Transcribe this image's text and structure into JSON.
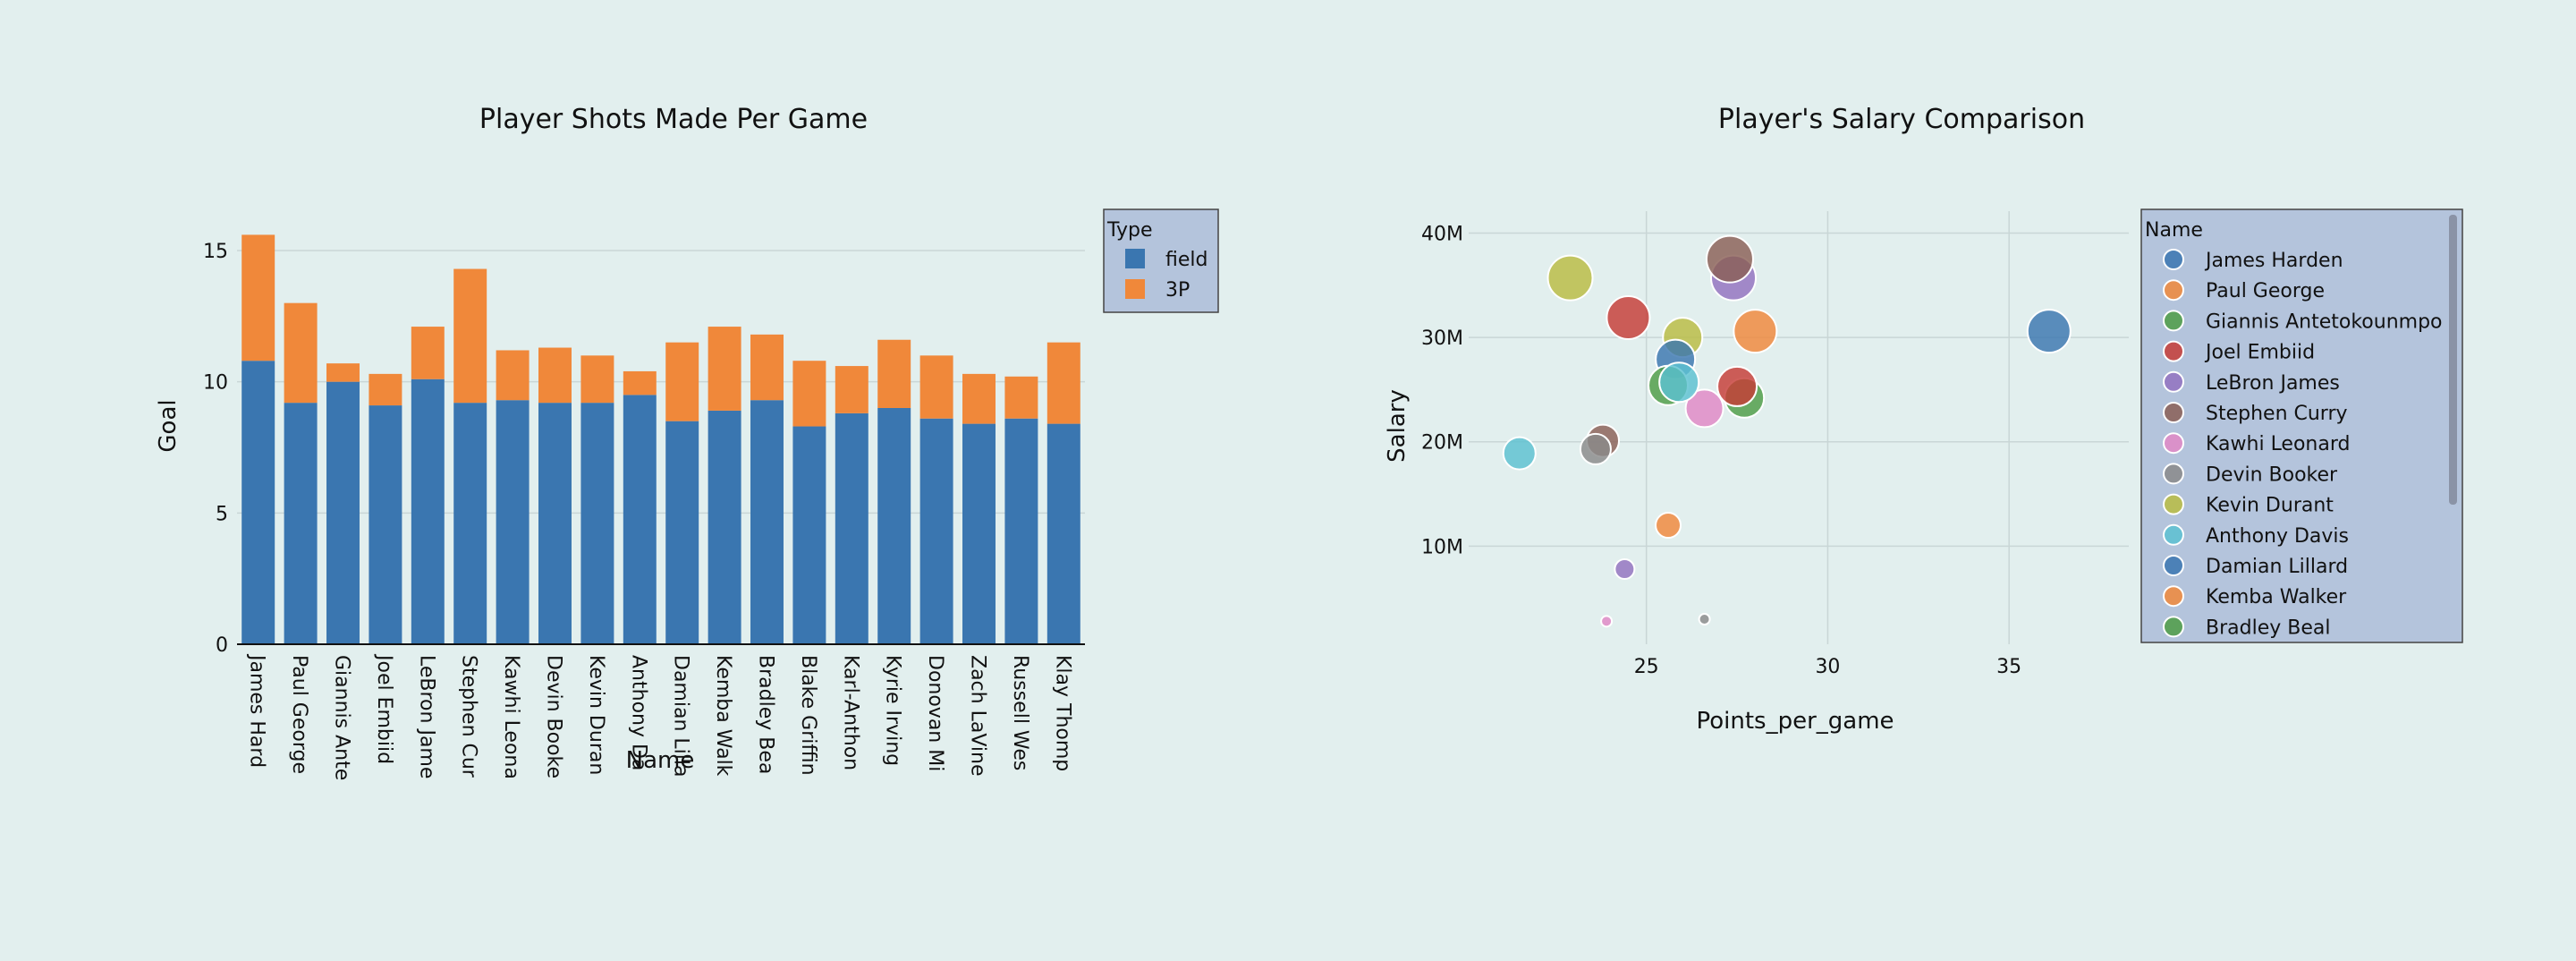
{
  "background": "#e2efee",
  "chart_data": [
    {
      "type": "bar",
      "stacked": true,
      "title": "Player Shots Made Per Game",
      "xlabel": "Name",
      "ylabel": "Goal",
      "ylim": [
        0,
        16.5
      ],
      "yticks": [
        0,
        5,
        10,
        15
      ],
      "grid": true,
      "legend_title": "Type",
      "legend_position": "right",
      "categories": [
        "James Harden",
        "Paul George",
        "Giannis Antetokounmpo",
        "Joel Embiid",
        "LeBron James",
        "Stephen Curry",
        "Kawhi Leonard",
        "Devin Booker",
        "Kevin Durant",
        "Anthony Davis",
        "Damian Lillard",
        "Kemba Walker",
        "Bradley Beal",
        "Blake Griffin",
        "Karl-Anthony Towns",
        "Kyrie Irving",
        "Donovan Mitchell",
        "Zach LaVine",
        "Russell Westbrook",
        "Klay Thompson"
      ],
      "tick_labels": [
        "James Hard",
        "Paul George",
        "Giannis Ante",
        "Joel Embiid",
        "LeBron Jame",
        "Stephen Cur",
        "Kawhi Leona",
        "Devin Booke",
        "Kevin Duran",
        "Anthony Da",
        "Damian Lilla",
        "Kemba Walk",
        "Bradley Bea",
        "Blake Griffin",
        "Karl-Anthon",
        "Kyrie Irving",
        "Donovan Mi",
        "Zach LaVine",
        "Russell Wes",
        "Klay Thomp"
      ],
      "series": [
        {
          "name": "field",
          "color": "#3a76b0",
          "values": [
            10.8,
            9.2,
            10.0,
            9.1,
            10.1,
            9.2,
            9.3,
            9.2,
            9.2,
            9.5,
            8.5,
            8.9,
            9.3,
            8.3,
            8.8,
            9.0,
            8.6,
            8.4,
            8.6,
            8.4
          ]
        },
        {
          "name": "3P",
          "color": "#f0883a",
          "values": [
            4.8,
            3.8,
            0.7,
            1.2,
            2.0,
            5.1,
            1.9,
            2.1,
            1.8,
            0.9,
            3.0,
            3.2,
            2.5,
            2.5,
            1.8,
            2.6,
            2.4,
            1.9,
            1.6,
            3.1
          ]
        }
      ]
    },
    {
      "type": "scatter",
      "subtype": "bubble",
      "title": "Player's Salary Comparison",
      "xlabel": "Points_per_game",
      "ylabel": "Salary",
      "xlim": [
        20.1,
        38.3
      ],
      "ylim": [
        0.6,
        42.1
      ],
      "xticks": [
        25,
        30,
        35
      ],
      "yticks": [
        10,
        20,
        30,
        40
      ],
      "ytick_labels": [
        "10M",
        "20M",
        "30M",
        "40M"
      ],
      "y_unit": "M",
      "grid": true,
      "legend_title": "Name",
      "legend_position": "right",
      "legend_items": [
        {
          "name": "James Harden",
          "color": "#3a76b0"
        },
        {
          "name": "Paul George",
          "color": "#f0883a"
        },
        {
          "name": "Giannis Antetokounmpo",
          "color": "#4d9c45"
        },
        {
          "name": "Joel Embiid",
          "color": "#c63c36"
        },
        {
          "name": "LeBron James",
          "color": "#9272c0"
        },
        {
          "name": "Stephen Curry",
          "color": "#8a5f56"
        },
        {
          "name": "Kawhi Leonard",
          "color": "#e088c6"
        },
        {
          "name": "Devin Booker",
          "color": "#8a8a8a"
        },
        {
          "name": "Kevin Durant",
          "color": "#b9bc42"
        },
        {
          "name": "Anthony Davis",
          "color": "#5cc1d1"
        },
        {
          "name": "Damian Lillard",
          "color": "#3a76b0"
        },
        {
          "name": "Kemba Walker",
          "color": "#f0883a"
        },
        {
          "name": "Bradley Beal",
          "color": "#4d9c45"
        }
      ],
      "points": [
        {
          "x": 36.1,
          "y": 30.6,
          "size": 24,
          "color": "#3a76b0"
        },
        {
          "x": 28.0,
          "y": 30.6,
          "size": 24,
          "color": "#f0883a"
        },
        {
          "x": 27.7,
          "y": 24.2,
          "size": 22,
          "color": "#4d9c45"
        },
        {
          "x": 24.5,
          "y": 31.9,
          "size": 24,
          "color": "#c63c36"
        },
        {
          "x": 27.4,
          "y": 35.7,
          "size": 25,
          "color": "#9272c0"
        },
        {
          "x": 27.3,
          "y": 37.5,
          "size": 26,
          "color": "#8a5f56"
        },
        {
          "x": 23.9,
          "y": 2.8,
          "size": 6,
          "color": "#e088c6"
        },
        {
          "x": 26.6,
          "y": 3.0,
          "size": 6,
          "color": "#8a8a8a"
        },
        {
          "x": 26.0,
          "y": 30.0,
          "size": 22,
          "color": "#b9bc42"
        },
        {
          "x": 21.5,
          "y": 18.9,
          "size": 18,
          "color": "#5cc1d1"
        },
        {
          "x": 25.8,
          "y": 27.9,
          "size": 22,
          "color": "#3a76b0"
        },
        {
          "x": 25.6,
          "y": 12.0,
          "size": 14,
          "color": "#f0883a"
        },
        {
          "x": 25.6,
          "y": 25.4,
          "size": 22,
          "color": "#4d9c45"
        },
        {
          "x": 27.5,
          "y": 25.3,
          "size": 22,
          "color": "#c63c36"
        },
        {
          "x": 24.4,
          "y": 7.8,
          "size": 11,
          "color": "#9272c0"
        },
        {
          "x": 23.8,
          "y": 20.1,
          "size": 18,
          "color": "#8a5f56"
        },
        {
          "x": 26.6,
          "y": 23.2,
          "size": 21,
          "color": "#e088c6"
        },
        {
          "x": 23.6,
          "y": 19.3,
          "size": 17,
          "color": "#8a8a8a"
        },
        {
          "x": 22.9,
          "y": 35.7,
          "size": 25,
          "color": "#b9bc42"
        },
        {
          "x": 25.9,
          "y": 25.7,
          "size": 22,
          "color": "#5cc1d1"
        }
      ]
    }
  ]
}
